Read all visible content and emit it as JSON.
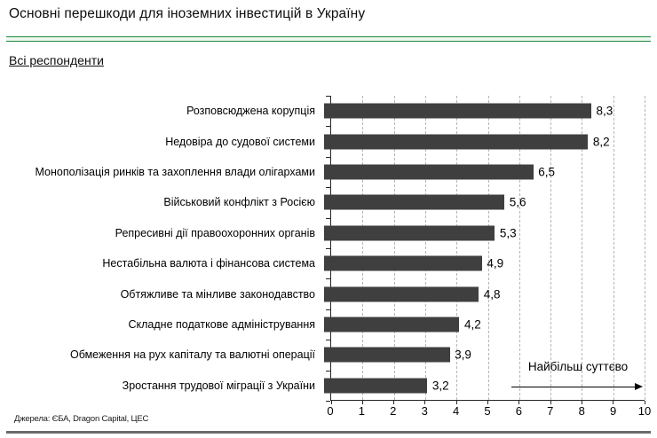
{
  "header": {
    "title": "Основні перешкоди для іноземних інвестицій в Україну",
    "subtitle": "Всі респонденти"
  },
  "source_line": "Джерела: ЄБА, Dragon Capital, ЦЕС",
  "colors": {
    "bar": "#3f3f3f",
    "accent_green": "#1c8a3b",
    "bottom_rule_gray": "#6b6b6b",
    "gridline": "#b5b5b5"
  },
  "chart_data": {
    "type": "bar",
    "orientation": "horizontal",
    "title": "Основні перешкоди для іноземних інвестицій в Україну",
    "subtitle": "Всі респонденти",
    "categories": [
      "Розповсюджена корупція",
      "Недовіра до судової системи",
      "Монополізація ринків та захоплення влади олігархами",
      "Військовий конфлікт з Росією",
      "Репресивні дії правоохоронних органів",
      "Нестабільна валюта і фінансова система",
      "Обтяжливе та мінливе законодавство",
      "Складне податкове адміністрування",
      "Обмеження на рух капіталу та валютні операції",
      "Зростання трудової міграції з України"
    ],
    "values": [
      8.3,
      8.2,
      6.5,
      5.6,
      5.3,
      4.9,
      4.8,
      4.2,
      3.9,
      3.2
    ],
    "value_labels": [
      "8,3",
      "8,2",
      "6,5",
      "5,6",
      "5,3",
      "4,9",
      "4,8",
      "4,2",
      "3,9",
      "3,2"
    ],
    "xlim": [
      0,
      10
    ],
    "x_tick_labels": [
      "0",
      "1",
      "2",
      "3",
      "4",
      "5",
      "6",
      "7",
      "8",
      "9",
      "10"
    ],
    "grid": "vertical-dashed",
    "legend": "none",
    "annotation": "Найбільш суттєво"
  }
}
